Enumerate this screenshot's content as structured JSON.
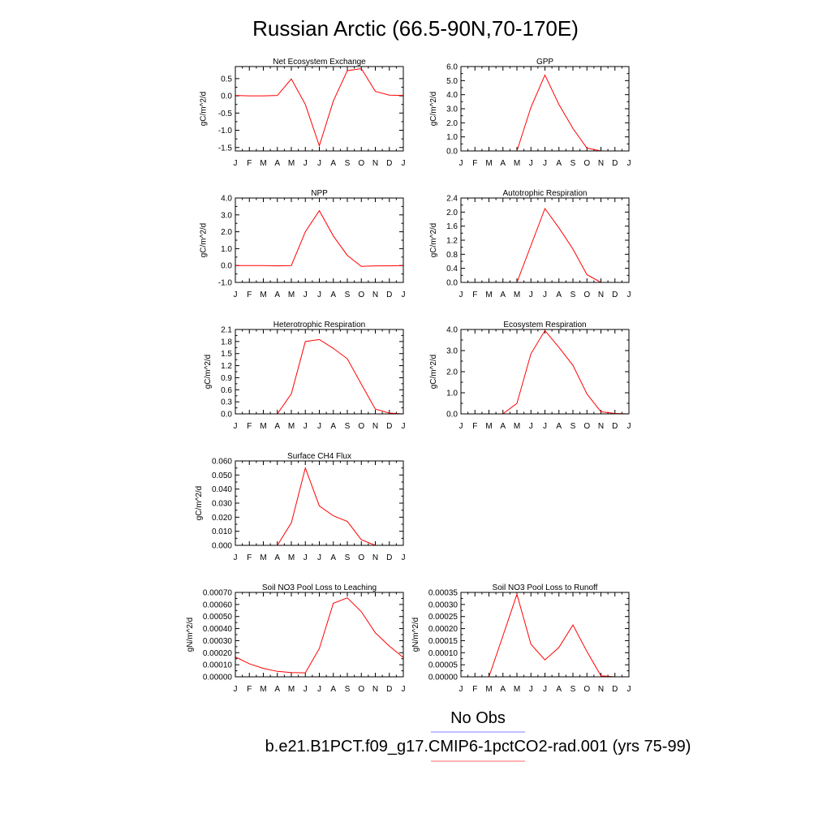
{
  "figure": {
    "title": "Russian Arctic (66.5-90N,70-170E)",
    "legend": [
      {
        "label": "No Obs",
        "color": "#8080ff"
      },
      {
        "label": "b.e21.B1PCT.f09_g17.CMIP6-1pctCO2-rad.001 (yrs 75-99)",
        "color": "#ff6666"
      }
    ],
    "series_color": "#ff0000"
  },
  "chart_data": [
    {
      "type": "line",
      "title": "Net Ecosystem Exchange",
      "ylabel": "gC/m^2/d",
      "categories": [
        "J",
        "F",
        "M",
        "A",
        "M",
        "J",
        "J",
        "A",
        "S",
        "O",
        "N",
        "D",
        "J"
      ],
      "ylim": [
        -1.6,
        0.85
      ],
      "yticks": [
        -1.5,
        -1.0,
        -0.5,
        0.0,
        0.5
      ],
      "ytick_labels": [
        "-1.5",
        "-1.0",
        "-0.5",
        "0.0",
        "0.5"
      ],
      "series": [
        {
          "values": [
            0.01,
            0.0,
            0.0,
            0.01,
            0.49,
            -0.25,
            -1.45,
            -0.15,
            0.73,
            0.79,
            0.13,
            0.02,
            0.01
          ]
        }
      ]
    },
    {
      "type": "line",
      "title": "GPP",
      "ylabel": "gC/m^2/d",
      "categories": [
        "J",
        "F",
        "M",
        "A",
        "M",
        "J",
        "J",
        "A",
        "S",
        "O",
        "N",
        "D",
        "J"
      ],
      "ylim": [
        0,
        6.0
      ],
      "yticks": [
        0,
        1,
        2,
        3,
        4,
        5,
        6
      ],
      "ytick_labels": [
        "0.0",
        "1.0",
        "2.0",
        "3.0",
        "4.0",
        "5.0",
        "6.0"
      ],
      "series": [
        {
          "values": [
            0.0,
            0.0,
            0.0,
            0.0,
            0.0,
            3.1,
            5.4,
            3.3,
            1.6,
            0.2,
            0.0,
            0.0,
            0.0
          ]
        }
      ]
    },
    {
      "type": "line",
      "title": "NPP",
      "ylabel": "gC/m^2/d",
      "categories": [
        "J",
        "F",
        "M",
        "A",
        "M",
        "J",
        "J",
        "A",
        "S",
        "O",
        "N",
        "D",
        "J"
      ],
      "ylim": [
        -1.0,
        4.0
      ],
      "yticks": [
        -1,
        0,
        1,
        2,
        3,
        4
      ],
      "ytick_labels": [
        "-1.0",
        "0.0",
        "1.0",
        "2.0",
        "3.0",
        "4.0"
      ],
      "series": [
        {
          "values": [
            0.0,
            0.0,
            0.0,
            -0.02,
            0.0,
            2.0,
            3.25,
            1.75,
            0.6,
            -0.05,
            -0.02,
            -0.02,
            0.0
          ]
        }
      ]
    },
    {
      "type": "line",
      "title": "Autotrophic Respiration",
      "ylabel": "gC/m^2/d",
      "categories": [
        "J",
        "F",
        "M",
        "A",
        "M",
        "J",
        "J",
        "A",
        "S",
        "O",
        "N",
        "D",
        "J"
      ],
      "ylim": [
        0,
        2.4
      ],
      "yticks": [
        0,
        0.4,
        0.8,
        1.2,
        1.6,
        2.0,
        2.4
      ],
      "ytick_labels": [
        "0.0",
        "0.4",
        "0.8",
        "1.2",
        "1.6",
        "2.0",
        "2.4"
      ],
      "series": [
        {
          "values": [
            0.0,
            0.0,
            0.0,
            0.0,
            0.0,
            1.05,
            2.1,
            1.55,
            0.95,
            0.22,
            0.0,
            0.0,
            0.0
          ]
        }
      ]
    },
    {
      "type": "line",
      "title": "Heterotrophic Respiration",
      "ylabel": "gC/m^2/d",
      "categories": [
        "J",
        "F",
        "M",
        "A",
        "M",
        "J",
        "J",
        "A",
        "S",
        "O",
        "N",
        "D",
        "J"
      ],
      "ylim": [
        0,
        2.1
      ],
      "yticks": [
        0,
        0.3,
        0.6,
        0.9,
        1.2,
        1.5,
        1.8,
        2.1
      ],
      "ytick_labels": [
        "0.0",
        "0.3",
        "0.6",
        "0.9",
        "1.2",
        "1.5",
        "1.8",
        "2.1"
      ],
      "series": [
        {
          "values": [
            0.0,
            0.0,
            0.0,
            0.0,
            0.5,
            1.8,
            1.85,
            1.63,
            1.37,
            0.74,
            0.12,
            0.02,
            0.0
          ]
        }
      ]
    },
    {
      "type": "line",
      "title": "Ecosystem Respiration",
      "ylabel": "gC/m^2/d",
      "categories": [
        "J",
        "F",
        "M",
        "A",
        "M",
        "J",
        "J",
        "A",
        "S",
        "O",
        "N",
        "D",
        "J"
      ],
      "ylim": [
        0,
        4.0
      ],
      "yticks": [
        0,
        1,
        2,
        3,
        4
      ],
      "ytick_labels": [
        "0.0",
        "1.0",
        "2.0",
        "3.0",
        "4.0"
      ],
      "series": [
        {
          "values": [
            0.0,
            0.0,
            0.0,
            0.0,
            0.5,
            2.85,
            3.95,
            3.15,
            2.3,
            0.95,
            0.1,
            0.02,
            0.0
          ]
        }
      ]
    },
    {
      "type": "line",
      "title": "Surface CH4 Flux",
      "ylabel": "gC/m^2/d",
      "categories": [
        "J",
        "F",
        "M",
        "A",
        "M",
        "J",
        "J",
        "A",
        "S",
        "O",
        "N",
        "D",
        "J"
      ],
      "ylim": [
        0,
        0.06
      ],
      "yticks": [
        0,
        0.01,
        0.02,
        0.03,
        0.04,
        0.05,
        0.06
      ],
      "ytick_labels": [
        "0.000",
        "0.010",
        "0.020",
        "0.030",
        "0.040",
        "0.050",
        "0.060"
      ],
      "series": [
        {
          "values": [
            0.0,
            0.0,
            0.0,
            0.0,
            0.016,
            0.055,
            0.028,
            0.021,
            0.017,
            0.004,
            0.0,
            0.0,
            0.0
          ]
        }
      ]
    },
    {
      "type": "line",
      "title": "Soil NO3 Pool Loss to Leaching",
      "ylabel": "gN/m^2/d",
      "categories": [
        "J",
        "F",
        "M",
        "A",
        "M",
        "J",
        "J",
        "A",
        "S",
        "O",
        "N",
        "D",
        "J"
      ],
      "ylim": [
        0,
        0.0007
      ],
      "yticks": [
        0,
        0.0001,
        0.0002,
        0.0003,
        0.0004,
        0.0005,
        0.0006,
        0.0007
      ],
      "ytick_labels": [
        "0.00000",
        "0.00010",
        "0.00020",
        "0.00030",
        "0.00040",
        "0.00050",
        "0.00060",
        "0.00070"
      ],
      "series": [
        {
          "values": [
            0.000165,
            0.000108,
            7e-05,
            4.5e-05,
            3.5e-05,
            3.3e-05,
            0.000235,
            0.00061,
            0.000655,
            0.00054,
            0.000365,
            0.000255,
            0.00016
          ]
        }
      ]
    },
    {
      "type": "line",
      "title": "Soil NO3 Pool Loss to Runoff",
      "ylabel": "gN/m^2/d",
      "categories": [
        "J",
        "F",
        "M",
        "A",
        "M",
        "J",
        "J",
        "A",
        "S",
        "O",
        "N",
        "D",
        "J"
      ],
      "ylim": [
        0,
        0.00035
      ],
      "yticks": [
        0,
        5e-05,
        0.0001,
        0.00015,
        0.0002,
        0.00025,
        0.0003,
        0.00035
      ],
      "ytick_labels": [
        "0.00000",
        "0.00005",
        "0.00010",
        "0.00015",
        "0.00020",
        "0.00025",
        "0.00030",
        "0.00035"
      ],
      "series": [
        {
          "values": [
            0.0,
            0.0,
            0.0,
            0.00017,
            0.000342,
            0.000135,
            7e-05,
            0.000122,
            0.000215,
            0.000105,
            4e-06,
            0.0,
            0.0
          ]
        }
      ]
    }
  ]
}
